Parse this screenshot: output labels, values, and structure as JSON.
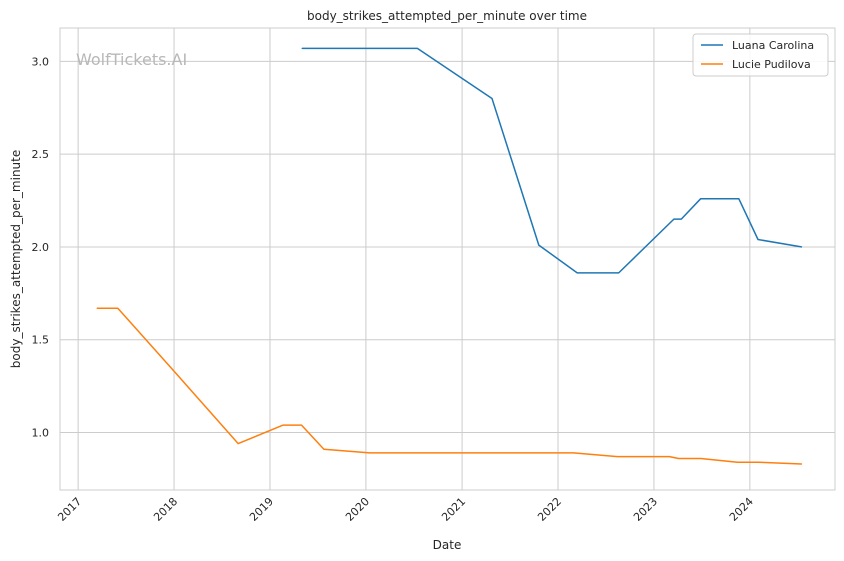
{
  "chart_data": {
    "type": "line",
    "title": "body_strikes_attempted_per_minute over time",
    "xlabel": "Date",
    "ylabel": "body_strikes_attempted_per_minute",
    "watermark": "WolfTickets.AI",
    "xlim": [
      "2016-10-24",
      "2024-11-20"
    ],
    "ylim": [
      0.69,
      3.18
    ],
    "x_ticks": [
      "2017",
      "2018",
      "2019",
      "2020",
      "2021",
      "2022",
      "2023",
      "2024"
    ],
    "y_ticks": [
      "1.0",
      "1.5",
      "2.0",
      "2.5",
      "3.0"
    ],
    "grid": true,
    "legend_position": "top-right",
    "series": [
      {
        "name": "Luana Carolina",
        "color": "#1f77b4",
        "points": [
          [
            "2019-05-04",
            3.07
          ],
          [
            "2020-07-15",
            3.07
          ],
          [
            "2021-04-25",
            2.8
          ],
          [
            "2021-10-20",
            2.01
          ],
          [
            "2022-03-15",
            1.86
          ],
          [
            "2022-08-20",
            1.86
          ],
          [
            "2023-03-18",
            2.15
          ],
          [
            "2023-04-15",
            2.15
          ],
          [
            "2023-06-28",
            2.26
          ],
          [
            "2023-11-20",
            2.26
          ],
          [
            "2024-02-01",
            2.04
          ],
          [
            "2024-07-15",
            2.0
          ]
        ]
      },
      {
        "name": "Lucie Pudilova",
        "color": "#ff7f0e",
        "points": [
          [
            "2017-03-15",
            1.67
          ],
          [
            "2017-06-01",
            1.67
          ],
          [
            "2018-01-20",
            1.3
          ],
          [
            "2018-09-02",
            0.94
          ],
          [
            "2019-02-20",
            1.04
          ],
          [
            "2019-05-01",
            1.04
          ],
          [
            "2019-07-25",
            0.91
          ],
          [
            "2020-01-15",
            0.89
          ],
          [
            "2022-03-01",
            0.89
          ],
          [
            "2022-08-15",
            0.87
          ],
          [
            "2023-03-01",
            0.87
          ],
          [
            "2023-04-05",
            0.86
          ],
          [
            "2023-06-28",
            0.86
          ],
          [
            "2023-11-15",
            0.84
          ],
          [
            "2024-02-01",
            0.84
          ],
          [
            "2024-07-15",
            0.83
          ]
        ]
      }
    ]
  }
}
